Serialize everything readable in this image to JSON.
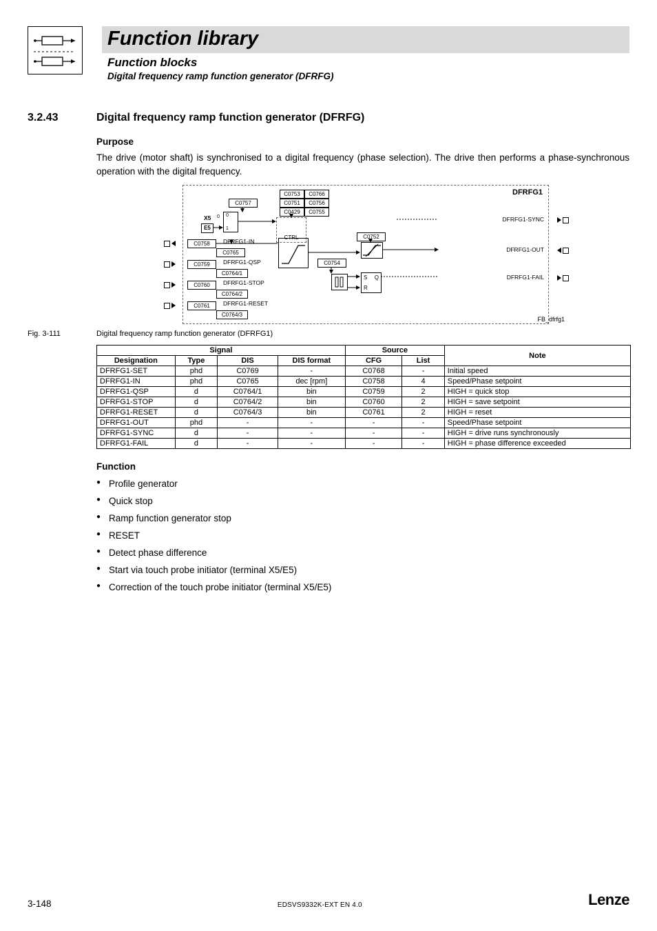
{
  "header": {
    "title_main": "Function library",
    "title_sub": "Function blocks",
    "title_sub2": "Digital frequency ramp function generator (DFRFG)"
  },
  "section": {
    "number": "3.2.43",
    "title": "Digital frequency ramp function generator (DFRFG)",
    "purpose_heading": "Purpose",
    "purpose_text": "The drive (motor shaft) is synchronised to a digital frequency (phase selection). The drive then performs a phase-synchronous operation with the digital frequency.",
    "function_heading": "Function"
  },
  "figure": {
    "caption_num": "Fig. 3-111",
    "caption_text": "Digital frequency ramp function generator (DFRFG1)",
    "fb_label": "FB_dfrfg1",
    "block_title": "DFRFG1",
    "box_top": [
      "C0753",
      "C0766",
      "C0757",
      "C0751",
      "C0756",
      "C0429",
      "C0755"
    ],
    "x5": "X5",
    "e5": "E5",
    "zero": "0",
    "one": "1",
    "ctrl": "CTRL",
    "inputs": [
      {
        "code": "C0758",
        "label": "DFRFG1-IN"
      },
      {
        "code": "C0765",
        "label": ""
      },
      {
        "code": "C0759",
        "label": "DFRFG1-QSP"
      },
      {
        "code": "C0764/1",
        "label": ""
      },
      {
        "code": "C0760",
        "label": "DFRFG1-STOP"
      },
      {
        "code": "C0764/2",
        "label": ""
      },
      {
        "code": "C0761",
        "label": "DFRFG1-RESET"
      },
      {
        "code": "C0764/3",
        "label": ""
      }
    ],
    "mid_codes": [
      "C0752",
      "C0754"
    ],
    "outputs": [
      "DFRFG1-SYNC",
      "DFRFG1-OUT",
      "DFRFG1-FAIL"
    ],
    "sr": {
      "s": "S",
      "q": "Q",
      "r": "R"
    }
  },
  "table": {
    "headers": {
      "signal": "Signal",
      "source": "Source",
      "note": "Note",
      "designation": "Designation",
      "type": "Type",
      "dis": "DIS",
      "dis_format": "DIS format",
      "cfg": "CFG",
      "list": "List"
    },
    "rows": [
      {
        "d": "DFRFG1-SET",
        "t": "phd",
        "dis": "C0769",
        "df": "-",
        "cfg": "C0768",
        "list": "-",
        "note": "Initial speed"
      },
      {
        "d": "DFRFG1-IN",
        "t": "phd",
        "dis": "C0765",
        "df": "dec [rpm]",
        "cfg": "C0758",
        "list": "4",
        "note": "Speed/Phase setpoint"
      },
      {
        "d": "DFRFG1-QSP",
        "t": "d",
        "dis": "C0764/1",
        "df": "bin",
        "cfg": "C0759",
        "list": "2",
        "note": "HIGH = quick stop"
      },
      {
        "d": "DFRFG1-STOP",
        "t": "d",
        "dis": "C0764/2",
        "df": "bin",
        "cfg": "C0760",
        "list": "2",
        "note": "HIGH = save setpoint"
      },
      {
        "d": "DFRFG1-RESET",
        "t": "d",
        "dis": "C0764/3",
        "df": "bin",
        "cfg": "C0761",
        "list": "2",
        "note": "HIGH = reset"
      },
      {
        "d": "DFRFG1-OUT",
        "t": "phd",
        "dis": "-",
        "df": "-",
        "cfg": "-",
        "list": "-",
        "note": "Speed/Phase setpoint"
      },
      {
        "d": "DFRFG1-SYNC",
        "t": "d",
        "dis": "-",
        "df": "-",
        "cfg": "-",
        "list": "-",
        "note": "HIGH = drive runs synchronously"
      },
      {
        "d": "DFRFG1-FAIL",
        "t": "d",
        "dis": "-",
        "df": "-",
        "cfg": "-",
        "list": "-",
        "note": "HIGH = phase difference exceeded"
      }
    ]
  },
  "bullets": [
    "Profile generator",
    "Quick stop",
    "Ramp function generator stop",
    "RESET",
    "Detect phase difference",
    "Start via touch probe initiator (terminal X5/E5)",
    "Correction of the touch probe initiator (terminal X5/E5)"
  ],
  "footer": {
    "page": "3-148",
    "doc_id": "EDSVS9332K-EXT EN 4.0",
    "brand": "Lenze"
  },
  "colors": {
    "banner_bg": "#d9d9d9",
    "text": "#000000",
    "page_bg": "#ffffff"
  }
}
